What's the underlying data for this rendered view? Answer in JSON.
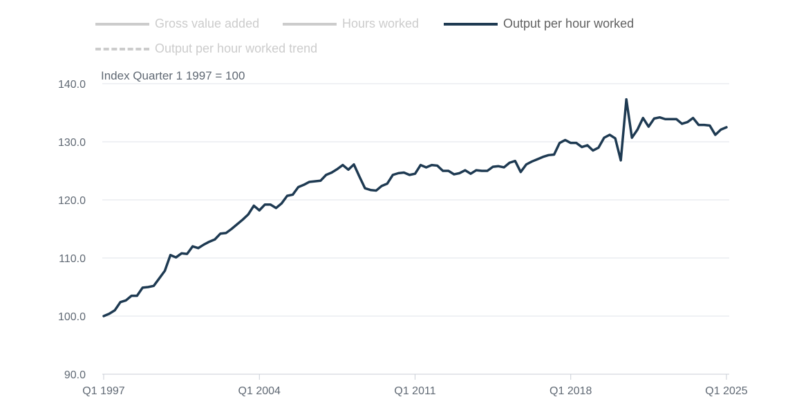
{
  "legend": [
    {
      "label": "Gross value added",
      "active": false,
      "style": "solid"
    },
    {
      "label": "Hours worked",
      "active": false,
      "style": "solid"
    },
    {
      "label": "Output per hour worked",
      "active": true,
      "style": "solid"
    },
    {
      "label": "Output per hour worked trend",
      "active": false,
      "style": "dashed"
    }
  ],
  "colors": {
    "active_series": "#1e3a52",
    "inactive": "#cccccc",
    "grid": "#d9dde2",
    "axis_text": "#5f6873",
    "active_text": "#616161"
  },
  "chart_data": {
    "type": "line",
    "ylabel": "Index Quarter 1 1997 = 100",
    "ylim": [
      90,
      140
    ],
    "yticks": [
      "90.0",
      "100.0",
      "110.0",
      "120.0",
      "130.0",
      "140.0"
    ],
    "xticks": [
      "Q1 1997",
      "Q1 2004",
      "Q1 2011",
      "Q1 2018",
      "Q1 2025"
    ],
    "x_start": "Q1 1997",
    "x_end": "Q1 2025",
    "grid": true,
    "series": [
      {
        "name": "Output per hour worked",
        "values": [
          100.0,
          100.4,
          101.0,
          102.4,
          102.7,
          103.5,
          103.5,
          104.9,
          105.0,
          105.2,
          106.5,
          107.8,
          110.5,
          110.1,
          110.8,
          110.7,
          112.0,
          111.7,
          112.3,
          112.8,
          113.2,
          114.2,
          114.3,
          115.0,
          115.8,
          116.6,
          117.5,
          119.0,
          118.2,
          119.2,
          119.2,
          118.6,
          119.4,
          120.7,
          120.9,
          122.2,
          122.6,
          123.1,
          123.2,
          123.3,
          124.3,
          124.7,
          125.3,
          126.0,
          125.2,
          126.1,
          124.0,
          122.0,
          121.7,
          121.6,
          122.4,
          122.8,
          124.3,
          124.6,
          124.7,
          124.3,
          124.5,
          126.0,
          125.6,
          126.0,
          125.9,
          125.0,
          125.0,
          124.4,
          124.6,
          125.1,
          124.5,
          125.1,
          125.0,
          125.0,
          125.7,
          125.8,
          125.6,
          126.4,
          126.7,
          124.8,
          126.1,
          126.6,
          127.0,
          127.4,
          127.7,
          127.8,
          129.8,
          130.3,
          129.8,
          129.8,
          129.1,
          129.4,
          128.5,
          129.0,
          130.7,
          131.2,
          130.6,
          126.8,
          137.3,
          130.7,
          132.1,
          134.1,
          132.6,
          134.0,
          134.2,
          133.9,
          133.9,
          133.9,
          133.1,
          133.4,
          134.1,
          132.9,
          132.9,
          132.8,
          131.2,
          132.1,
          132.5
        ]
      }
    ]
  }
}
